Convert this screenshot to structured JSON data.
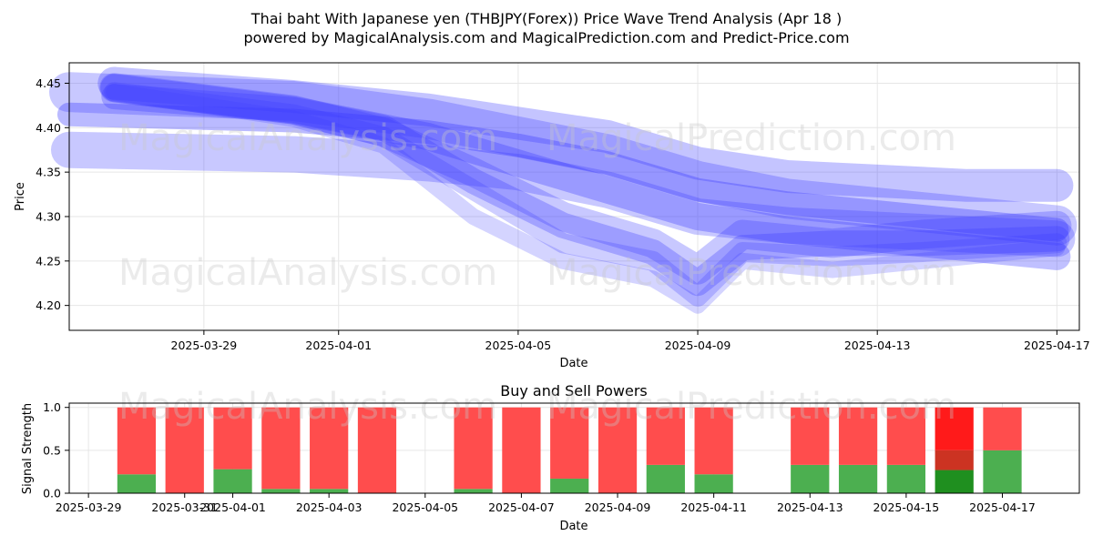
{
  "header": {
    "title": "Thai baht With Japanese yen (THBJPY(Forex)) Price Wave Trend Analysis (Apr 18 )",
    "subtitle": "powered by MagicalAnalysis.com and MagicalPrediction.com and Predict-Price.com"
  },
  "watermarks": [
    "MagicalAnalysis.com",
    "MagicalPrediction.com"
  ],
  "colors": {
    "wave": "#3a3aff",
    "buy": "#4caf50",
    "sell": "#ff4d4d",
    "buy_strong": "#1f8f1f",
    "sell_strong": "#ff1a1a",
    "sell_mid": "#cc3322"
  },
  "chart_data": [
    {
      "type": "line",
      "title": "",
      "xlabel": "Date",
      "ylabel": "Price",
      "x_ticks": [
        "2025-03-29",
        "2025-04-01",
        "2025-04-05",
        "2025-04-09",
        "2025-04-13",
        "2025-04-17"
      ],
      "y_ticks": [
        "4.20",
        "4.25",
        "4.30",
        "4.35",
        "4.40",
        "4.45"
      ],
      "xlim": [
        "2025-03-26",
        "2025-04-17.5"
      ],
      "ylim": [
        4.172,
        4.473
      ],
      "grid": true,
      "series": [
        {
          "x": [
            "2025-03-26",
            "2025-03-31",
            "2025-04-03",
            "2025-04-05",
            "2025-04-07",
            "2025-04-09",
            "2025-04-11",
            "2025-04-13",
            "2025-04-15",
            "2025-04-17"
          ],
          "values": [
            4.415,
            4.408,
            4.395,
            4.38,
            4.36,
            4.33,
            4.315,
            4.305,
            4.295,
            4.285
          ]
        },
        {
          "x": [
            "2025-03-26",
            "2025-03-31",
            "2025-04-03",
            "2025-04-05",
            "2025-04-07",
            "2025-04-09",
            "2025-04-11",
            "2025-04-13",
            "2025-04-15",
            "2025-04-17"
          ],
          "values": [
            4.44,
            4.43,
            4.41,
            4.39,
            4.37,
            4.34,
            4.32,
            4.31,
            4.3,
            4.29
          ]
        },
        {
          "x": [
            "2025-03-27",
            "2025-03-31",
            "2025-04-03",
            "2025-04-05",
            "2025-04-07",
            "2025-04-09",
            "2025-04-11",
            "2025-04-13",
            "2025-04-15",
            "2025-04-17"
          ],
          "values": [
            4.45,
            4.435,
            4.42,
            4.405,
            4.39,
            4.36,
            4.345,
            4.34,
            4.335,
            4.335
          ]
        },
        {
          "x": [
            "2025-03-27",
            "2025-03-31",
            "2025-04-03",
            "2025-04-05",
            "2025-04-07",
            "2025-04-09",
            "2025-04-11",
            "2025-04-13",
            "2025-04-15",
            "2025-04-17"
          ],
          "values": [
            4.445,
            4.42,
            4.39,
            4.36,
            4.33,
            4.3,
            4.285,
            4.275,
            4.265,
            4.255
          ]
        },
        {
          "x": [
            "2025-03-27",
            "2025-03-31",
            "2025-04-02",
            "2025-04-04",
            "2025-04-06",
            "2025-04-08",
            "2025-04-09",
            "2025-04-10",
            "2025-04-12",
            "2025-04-14",
            "2025-04-17"
          ],
          "values": [
            4.44,
            4.415,
            4.39,
            4.33,
            4.27,
            4.25,
            4.21,
            4.26,
            4.255,
            4.26,
            4.27
          ]
        },
        {
          "x": [
            "2025-03-27",
            "2025-03-31",
            "2025-04-02",
            "2025-04-04",
            "2025-04-06",
            "2025-04-08",
            "2025-04-09",
            "2025-04-10",
            "2025-04-12",
            "2025-04-14",
            "2025-04-17"
          ],
          "values": [
            4.445,
            4.42,
            4.395,
            4.35,
            4.3,
            4.27,
            4.24,
            4.28,
            4.27,
            4.28,
            4.29
          ]
        },
        {
          "x": [
            "2025-03-27",
            "2025-03-31",
            "2025-04-02",
            "2025-04-04",
            "2025-04-06",
            "2025-04-08",
            "2025-04-09",
            "2025-04-10",
            "2025-04-12",
            "2025-04-14",
            "2025-04-17"
          ],
          "values": [
            4.44,
            4.41,
            4.38,
            4.3,
            4.25,
            4.23,
            4.2,
            4.25,
            4.24,
            4.25,
            4.265
          ]
        },
        {
          "x": [
            "2025-03-27",
            "2025-03-31",
            "2025-04-02",
            "2025-04-04",
            "2025-04-06",
            "2025-04-08",
            "2025-04-09",
            "2025-04-10",
            "2025-04-12",
            "2025-04-14",
            "2025-04-17"
          ],
          "values": [
            4.435,
            4.42,
            4.4,
            4.34,
            4.29,
            4.26,
            4.225,
            4.265,
            4.27,
            4.27,
            4.275
          ]
        },
        {
          "x": [
            "2025-03-26",
            "2025-03-31",
            "2025-04-03",
            "2025-04-05",
            "2025-04-07",
            "2025-04-09",
            "2025-04-11",
            "2025-04-13",
            "2025-04-15",
            "2025-04-17"
          ],
          "values": [
            4.375,
            4.37,
            4.36,
            4.35,
            4.33,
            4.3,
            4.29,
            4.285,
            4.28,
            4.275
          ]
        }
      ]
    },
    {
      "type": "bar",
      "title": "Buy and Sell Powers",
      "xlabel": "Date",
      "ylabel": "Signal Strength",
      "x_ticks": [
        "2025-03-29",
        "2025-03-31",
        "2025-04-01",
        "2025-04-03",
        "2025-04-05",
        "2025-04-07",
        "2025-04-09",
        "2025-04-11",
        "2025-04-13",
        "2025-04-15",
        "2025-04-17"
      ],
      "y_ticks": [
        "0.0",
        "0.5",
        "1.0"
      ],
      "ylim": [
        0,
        1.05
      ],
      "grid": true,
      "categories": [
        "2025-03-30",
        "2025-03-31",
        "2025-04-01",
        "2025-04-02",
        "2025-04-03",
        "2025-04-04",
        "2025-04-06",
        "2025-04-07",
        "2025-04-08",
        "2025-04-09",
        "2025-04-10",
        "2025-04-11",
        "2025-04-13",
        "2025-04-14",
        "2025-04-15",
        "2025-04-16",
        "2025-04-17"
      ],
      "series": [
        {
          "values": [
            0.22,
            0.0,
            0.28,
            0.05,
            0.05,
            0.0,
            0.05,
            0.0,
            0.17,
            0.0,
            0.33,
            0.22,
            0.33,
            0.33,
            0.33,
            0.27,
            0.5
          ]
        },
        {
          "values": [
            0.78,
            1.0,
            0.72,
            0.95,
            0.95,
            1.0,
            0.95,
            1.0,
            0.83,
            1.0,
            0.67,
            0.78,
            0.67,
            0.67,
            0.67,
            0.73,
            0.5
          ]
        }
      ]
    }
  ]
}
